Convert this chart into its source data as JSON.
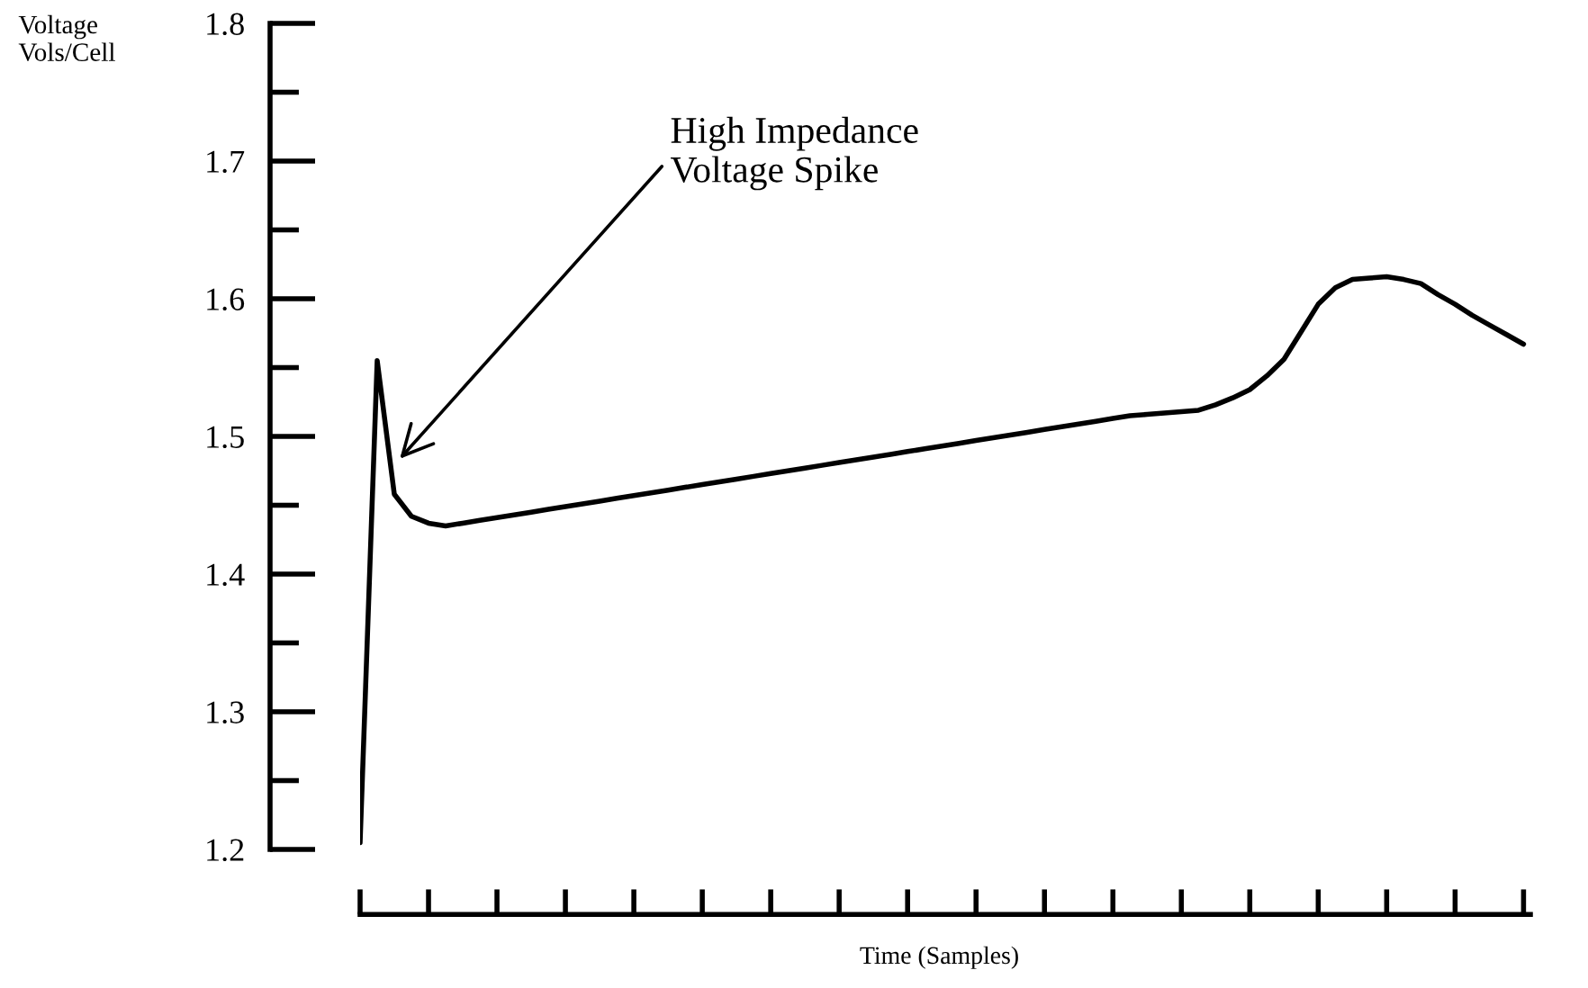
{
  "chart_data": {
    "type": "line",
    "xlabel": "Time (Samples)",
    "ylabel": "Voltage\nVols/Cell",
    "categories": [
      null,
      null,
      null,
      null,
      null,
      null,
      null,
      null,
      null,
      null,
      null,
      null,
      null,
      null,
      null,
      null,
      null,
      null,
      null,
      null,
      null,
      null,
      null,
      null,
      null,
      null,
      null,
      null,
      null,
      null,
      null,
      null,
      null,
      null,
      null,
      null,
      null,
      null,
      null,
      null,
      null,
      null,
      null,
      null,
      null,
      null,
      null,
      null,
      null,
      null,
      null,
      null,
      null,
      null,
      null,
      null,
      null,
      null,
      null,
      null,
      null,
      null,
      null,
      null,
      null,
      null,
      null,
      null,
      null
    ],
    "series": [
      {
        "color": "#000000",
        "values": [
          1.205,
          1.555,
          1.458,
          1.442,
          1.437,
          1.435,
          1.437,
          1.439,
          1.441,
          1.443,
          1.445,
          1.447,
          1.449,
          1.451,
          1.453,
          1.455,
          1.457,
          1.459,
          1.461,
          1.463,
          1.465,
          1.467,
          1.469,
          1.471,
          1.473,
          1.475,
          1.477,
          1.479,
          1.481,
          1.483,
          1.485,
          1.487,
          1.489,
          1.491,
          1.493,
          1.495,
          1.497,
          1.499,
          1.501,
          1.503,
          1.505,
          1.507,
          1.509,
          1.511,
          1.513,
          1.515,
          1.516,
          1.517,
          1.518,
          1.519,
          1.523,
          1.528,
          1.534,
          1.544,
          1.556,
          1.576,
          1.596,
          1.608,
          1.614,
          1.615,
          1.616,
          1.614,
          1.611,
          1.603,
          1.596,
          1.588,
          1.581,
          1.574,
          1.567
        ]
      }
    ],
    "ylim": [
      1.2,
      1.8
    ],
    "yticks": [
      1.2,
      1.3,
      1.4,
      1.5,
      1.6,
      1.7,
      1.8
    ],
    "annotations": [
      "High Impedance\nVoltage Spike"
    ]
  }
}
